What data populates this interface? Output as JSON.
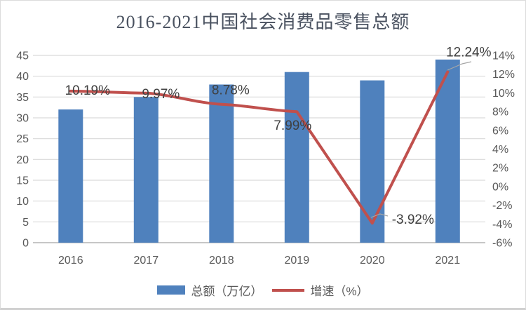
{
  "title": "2016-2021中国社会消费品零售总额",
  "colors": {
    "bar": "#4F81BD",
    "line": "#C0504D",
    "grid": "#D9D9D9",
    "axis_line": "#C6C6C6",
    "axis_text": "#595959",
    "label_text": "#3F3F3F",
    "title_text": "#4A5260",
    "leader": "#A6A6A6"
  },
  "chart_data": {
    "type": "bar+line",
    "title": "2016-2021中国社会消费品零售总额",
    "categories": [
      "2016",
      "2017",
      "2018",
      "2019",
      "2020",
      "2021"
    ],
    "series": [
      {
        "name": "总额（万亿）",
        "type": "bar",
        "axis": "left",
        "values": [
          32,
          35,
          38,
          41,
          39,
          44
        ]
      },
      {
        "name": "增速（%）",
        "type": "line",
        "axis": "right",
        "values": [
          10.19,
          9.97,
          8.78,
          7.99,
          -3.92,
          12.24
        ],
        "labels": [
          "10.19%",
          "9.97%",
          "8.78%",
          "7.99%",
          "-3.92%",
          "12.24%"
        ]
      }
    ],
    "left_axis": {
      "min": 0,
      "max": 45,
      "ticks": [
        "45",
        "40",
        "35",
        "30",
        "25",
        "20",
        "15",
        "10",
        "5",
        "0"
      ]
    },
    "right_axis": {
      "min": -6,
      "max": 14,
      "ticks": [
        "14%",
        "12%",
        "10%",
        "8%",
        "6%",
        "4%",
        "2%",
        "0%",
        "-2%",
        "-4%",
        "-6%"
      ]
    },
    "legend": [
      {
        "label": "总额（万亿）",
        "swatch": "bar"
      },
      {
        "label": "增速（%）",
        "swatch": "line"
      }
    ],
    "grid": true,
    "legend_position": "bottom"
  }
}
